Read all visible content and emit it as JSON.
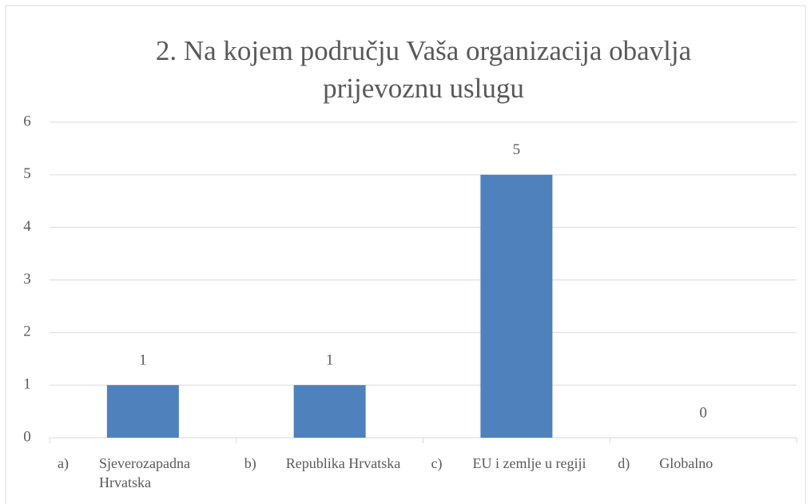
{
  "chart_data": {
    "type": "bar",
    "title": "2. Na kojem području Vaša organizacija obavlja prijevoznu uslugu",
    "categories": [
      "a) Sjeverozapadna Hrvatska",
      "b) Republika Hrvatska",
      "c) EU i zemlje u regiji",
      "d) Globalno"
    ],
    "values": [
      1,
      1,
      5,
      0
    ],
    "color": "#4f81bd",
    "ylim": [
      0,
      6
    ],
    "yticks": [
      0,
      1,
      2,
      3,
      4,
      5,
      6
    ],
    "grid": true
  }
}
